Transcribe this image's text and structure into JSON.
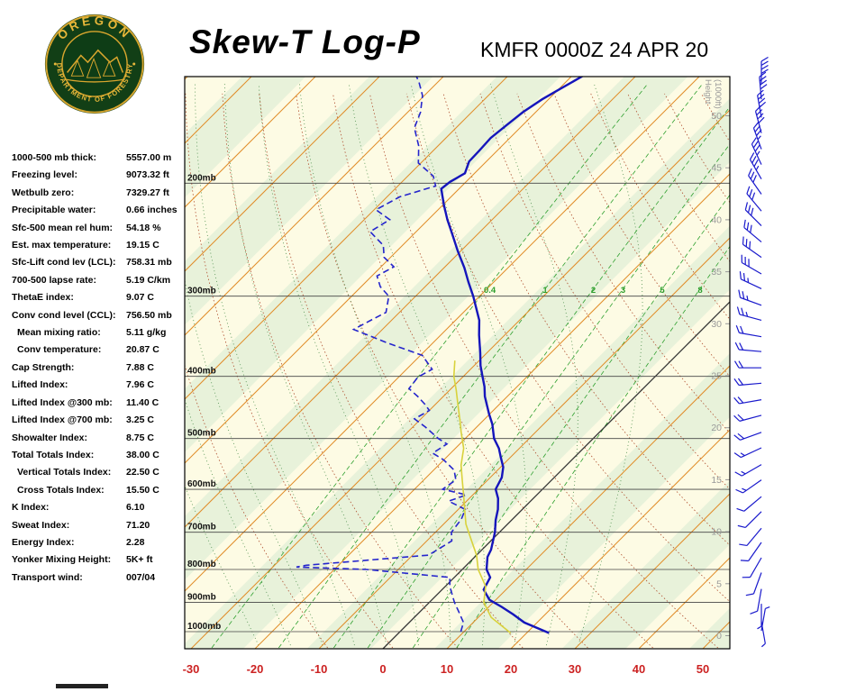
{
  "header": {
    "title": "Skew-T Log-P",
    "station": "KMFR 0000Z 24 APR 20",
    "logo_text_top": "OREGON",
    "logo_text_bottom": "DEPARTMENT OF FORESTRY"
  },
  "indices": [
    {
      "label": "1000-500 mb thick:",
      "value": "5557.00 m",
      "indent": false
    },
    {
      "label": "Freezing level:",
      "value": "9073.32 ft",
      "indent": false
    },
    {
      "label": "Wetbulb zero:",
      "value": "7329.27 ft",
      "indent": false
    },
    {
      "label": "Precipitable water:",
      "value": "0.66 inches",
      "indent": false
    },
    {
      "label": "Sfc-500 mean rel hum:",
      "value": "54.18 %",
      "indent": false
    },
    {
      "label": "Est. max temperature:",
      "value": "19.15 C",
      "indent": false
    },
    {
      "label": "Sfc-Lift cond lev (LCL):",
      "value": "758.31 mb",
      "indent": false
    },
    {
      "label": "700-500 lapse rate:",
      "value": "5.19 C/km",
      "indent": false
    },
    {
      "label": "ThetaE index:",
      "value": "9.07 C",
      "indent": false
    },
    {
      "label": "Conv cond level (CCL):",
      "value": "756.50 mb",
      "indent": false
    },
    {
      "label": "Mean mixing ratio:",
      "value": "5.11 g/kg",
      "indent": true
    },
    {
      "label": "Conv temperature:",
      "value": "20.87 C",
      "indent": true
    },
    {
      "label": "Cap Strength:",
      "value": "7.88 C",
      "indent": false
    },
    {
      "label": "Lifted Index:",
      "value": "7.96 C",
      "indent": false
    },
    {
      "label": "Lifted Index @300 mb:",
      "value": "11.40 C",
      "indent": false
    },
    {
      "label": "Lifted Index @700 mb:",
      "value": "3.25 C",
      "indent": false
    },
    {
      "label": "Showalter Index:",
      "value": "8.75 C",
      "indent": false
    },
    {
      "label": "Total Totals Index:",
      "value": "38.00 C",
      "indent": false
    },
    {
      "label": "Vertical Totals Index:",
      "value": "22.50 C",
      "indent": true
    },
    {
      "label": "Cross Totals Index:",
      "value": "15.50 C",
      "indent": true
    },
    {
      "label": "K Index:",
      "value": "6.10",
      "indent": false
    },
    {
      "label": "Sweat Index:",
      "value": "71.20",
      "indent": false
    },
    {
      "label": "Energy Index:",
      "value": "2.28",
      "indent": false
    },
    {
      "label": "Yonker Mixing Height:",
      "value": "5K+ ft",
      "indent": false
    },
    {
      "label": "Transport wind:",
      "value": "007/04",
      "indent": false
    }
  ],
  "chart_data": {
    "type": "line",
    "variant": "skew-t-log-p",
    "title": "Skew-T Log-P",
    "x_axis": {
      "tick_labels": [
        "-30",
        "-20",
        "-10",
        "0",
        "10",
        "20",
        "30",
        "40",
        "50"
      ],
      "unit": "C"
    },
    "pressure_lines": [
      200,
      300,
      400,
      500,
      600,
      700,
      800,
      900,
      1000
    ],
    "pressure_unit": "mb",
    "height_scale": {
      "label_line1": "Height",
      "label_line2": "(1000ft)",
      "ticks": [
        50,
        45,
        40,
        35,
        30,
        25,
        20,
        15,
        10,
        5,
        0
      ]
    },
    "mixing_ratio_lines": [
      0.4,
      1,
      2,
      3,
      5,
      8
    ],
    "isotherm_step_c": 10,
    "series": [
      {
        "name": "temperature",
        "color": "#1515bb",
        "style": "solid",
        "points": [
          [
            1005,
            23.5
          ],
          [
            968,
            18
          ],
          [
            940,
            15
          ],
          [
            915,
            12
          ],
          [
            892,
            9
          ],
          [
            860,
            6.5
          ],
          [
            823,
            5.6
          ],
          [
            800,
            3.8
          ],
          [
            765,
            2
          ],
          [
            745,
            1.4
          ],
          [
            700,
            -0.7
          ],
          [
            670,
            -2.5
          ],
          [
            645,
            -3.8
          ],
          [
            620,
            -5.5
          ],
          [
            600,
            -7.3
          ],
          [
            575,
            -8.2
          ],
          [
            554,
            -9.6
          ],
          [
            535,
            -11.5
          ],
          [
            518,
            -13.2
          ],
          [
            500,
            -15.5
          ],
          [
            475,
            -18
          ],
          [
            458,
            -20.1
          ],
          [
            430,
            -23.5
          ],
          [
            415,
            -25.1
          ],
          [
            401,
            -26.9
          ],
          [
            385,
            -29
          ],
          [
            368,
            -31
          ],
          [
            345,
            -34
          ],
          [
            327,
            -36.3
          ],
          [
            300,
            -41
          ],
          [
            285,
            -44
          ],
          [
            271,
            -46.8
          ],
          [
            255,
            -50.5
          ],
          [
            240,
            -54
          ],
          [
            228,
            -57
          ],
          [
            216,
            -59.9
          ],
          [
            204,
            -62.8
          ],
          [
            199,
            -62.5
          ],
          [
            193,
            -61.5
          ],
          [
            185,
            -62.7
          ],
          [
            178,
            -62.8
          ],
          [
            170,
            -63
          ],
          [
            162,
            -62.5
          ],
          [
            155,
            -62
          ],
          [
            148,
            -61
          ],
          [
            143,
            -59.9
          ],
          [
            137,
            -58.5
          ],
          [
            132,
            -57.3
          ]
        ]
      },
      {
        "name": "dewpoint",
        "color": "#2525cc",
        "style": "dashed",
        "points": [
          [
            1000,
            9.5
          ],
          [
            968,
            8.5
          ],
          [
            930,
            6
          ],
          [
            900,
            3.9
          ],
          [
            850,
            0.7
          ],
          [
            823,
            -0.7
          ],
          [
            800,
            -15
          ],
          [
            793,
            -26.3
          ],
          [
            788,
            -25
          ],
          [
            760,
            -7.5
          ],
          [
            722,
            -6.1
          ],
          [
            700,
            -7.5
          ],
          [
            668,
            -8
          ],
          [
            645,
            -8.9
          ],
          [
            626,
            -12.8
          ],
          [
            612,
            -11
          ],
          [
            600,
            -15.6
          ],
          [
            580,
            -15
          ],
          [
            560,
            -16.8
          ],
          [
            540,
            -20
          ],
          [
            527,
            -22.8
          ],
          [
            510,
            -22
          ],
          [
            500,
            -24.2
          ],
          [
            480,
            -28
          ],
          [
            466,
            -31
          ],
          [
            452,
            -30
          ],
          [
            442,
            -31.7
          ],
          [
            430,
            -34
          ],
          [
            418,
            -36.6
          ],
          [
            401,
            -37
          ],
          [
            390,
            -36
          ],
          [
            371,
            -39.7
          ],
          [
            355,
            -47
          ],
          [
            338,
            -54.5
          ],
          [
            325,
            -53
          ],
          [
            318,
            -52.1
          ],
          [
            300,
            -54.2
          ],
          [
            290,
            -57
          ],
          [
            279,
            -59.2
          ],
          [
            270,
            -58
          ],
          [
            261,
            -61
          ],
          [
            250,
            -63
          ],
          [
            238,
            -67.2
          ],
          [
            228,
            -66
          ],
          [
            220,
            -69.7
          ],
          [
            210,
            -68
          ],
          [
            202,
            -64.1
          ],
          [
            195,
            -66
          ],
          [
            186,
            -70.4
          ],
          [
            175,
            -73
          ],
          [
            164,
            -76.5
          ],
          [
            155,
            -78
          ],
          [
            146,
            -80.3
          ],
          [
            139,
            -83
          ],
          [
            133,
            -85.8
          ]
        ]
      },
      {
        "name": "parcel",
        "color": "#d8d23c",
        "style": "solid",
        "points": [
          [
            1005,
            17.5
          ],
          [
            950,
            12
          ],
          [
            900,
            8.5
          ],
          [
            850,
            6.3
          ],
          [
            800,
            2.5
          ],
          [
            760,
            0
          ],
          [
            722,
            -3
          ],
          [
            680,
            -6.5
          ],
          [
            645,
            -9
          ],
          [
            614,
            -11.3
          ],
          [
            580,
            -14
          ],
          [
            550,
            -16.5
          ],
          [
            518,
            -18.7
          ],
          [
            490,
            -21.5
          ],
          [
            470,
            -23.5
          ],
          [
            444,
            -26.3
          ],
          [
            420,
            -29
          ],
          [
            400,
            -31.5
          ],
          [
            378,
            -33.8
          ]
        ]
      }
    ],
    "wind_barbs": [
      [
        997,
        10,
        4
      ],
      [
        964,
        170,
        5
      ],
      [
        905,
        180,
        5
      ],
      [
        858,
        190,
        8
      ],
      [
        809,
        200,
        8
      ],
      [
        767,
        210,
        10
      ],
      [
        726,
        215,
        10
      ],
      [
        690,
        220,
        10
      ],
      [
        650,
        225,
        12
      ],
      [
        616,
        230,
        12
      ],
      [
        580,
        235,
        15
      ],
      [
        549,
        240,
        15
      ],
      [
        517,
        245,
        15
      ],
      [
        489,
        250,
        18
      ],
      [
        460,
        255,
        18
      ],
      [
        435,
        260,
        20
      ],
      [
        410,
        265,
        20
      ],
      [
        388,
        270,
        20
      ],
      [
        366,
        275,
        22
      ],
      [
        347,
        280,
        22
      ],
      [
        327,
        285,
        25
      ],
      [
        310,
        290,
        25
      ],
      [
        292,
        295,
        25
      ],
      [
        277,
        300,
        28
      ],
      [
        261,
        305,
        28
      ],
      [
        247,
        310,
        30
      ],
      [
        233,
        315,
        30
      ],
      [
        221,
        320,
        32
      ],
      [
        208,
        325,
        32
      ],
      [
        197,
        330,
        35
      ],
      [
        187,
        335,
        35
      ],
      [
        177,
        340,
        35
      ],
      [
        167,
        345,
        38
      ],
      [
        158,
        350,
        38
      ],
      [
        148,
        355,
        40
      ],
      [
        140,
        0,
        40
      ]
    ],
    "colors": {
      "isotherm": "#e08c28",
      "zero_isotherm": "#333333",
      "dry_adiabat": "#b05030",
      "moist_adiabat": "#4d8f4d",
      "mixing_ratio": "#2fa02f",
      "band_cream": "#fdfbe4",
      "band_green": "#e8f2da",
      "axis_temp": "#cc2222",
      "pressure_label": "#111111",
      "height_label": "#999999",
      "barb": "#1a1acc"
    }
  }
}
